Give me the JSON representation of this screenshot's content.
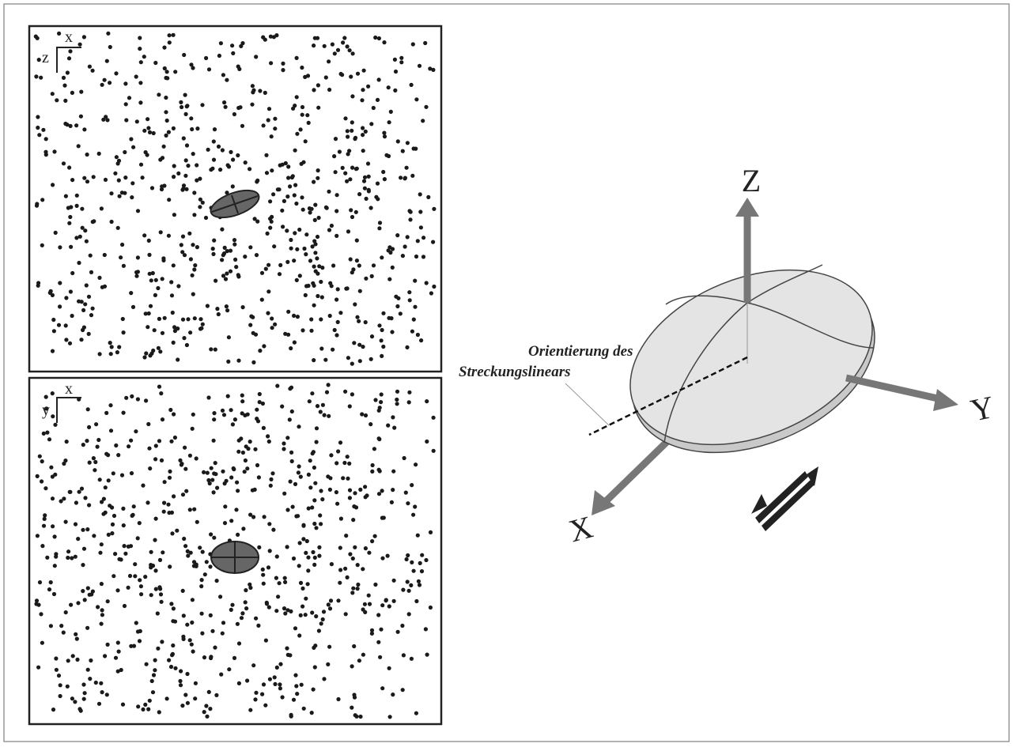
{
  "panels": [
    {
      "axis_h": "x",
      "axis_v": "z"
    },
    {
      "axis_h": "x",
      "axis_v": "y"
    }
  ],
  "axes": {
    "z": "Z",
    "y": "Y",
    "x": "X"
  },
  "annotation": {
    "lines": [
      "Orientierung des",
      "Streckungslinears"
    ]
  }
}
